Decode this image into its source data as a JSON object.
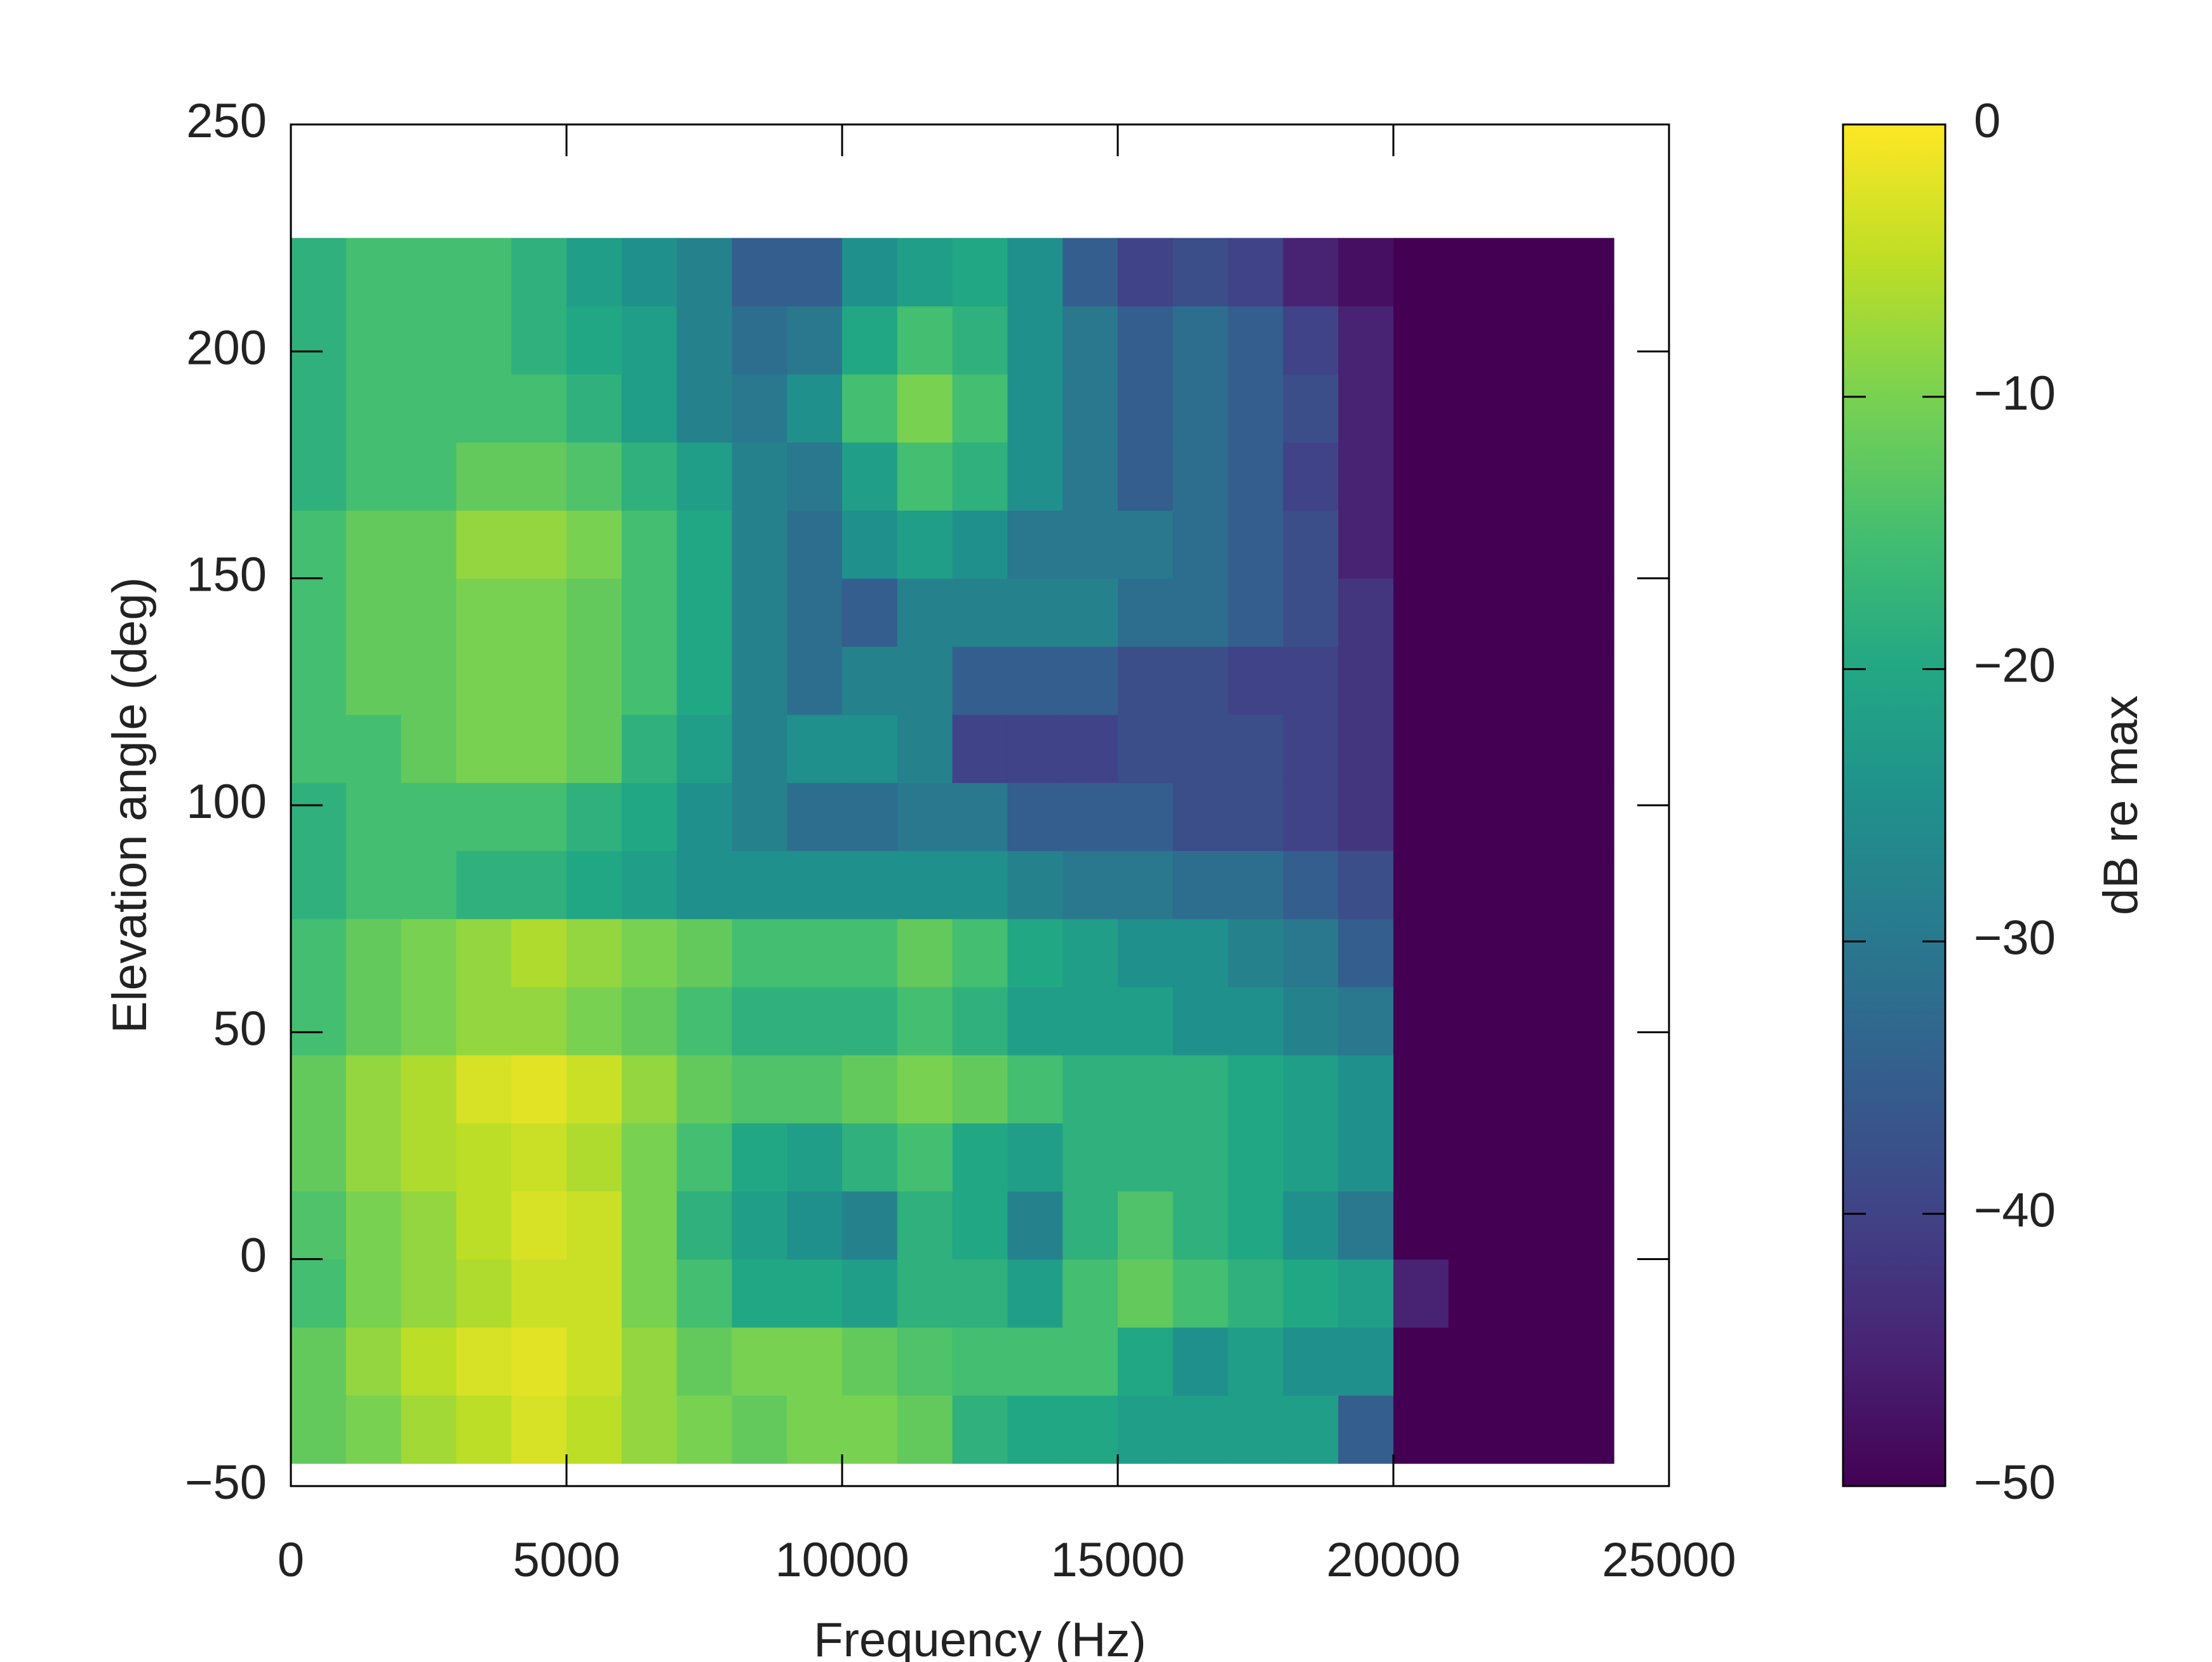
{
  "chart_data": {
    "type": "heatmap",
    "xlabel": "Frequency (Hz)",
    "ylabel": "Elevation angle (deg)",
    "colorbar_label": "dB re max",
    "colormap": "viridis",
    "xbins": [
      0,
      1000,
      2000,
      3000,
      4000,
      5000,
      6000,
      7000,
      8000,
      9000,
      10000,
      11000,
      12000,
      13000,
      14000,
      15000,
      16000,
      17000,
      18000,
      19000,
      20000,
      21000,
      22000,
      23000,
      24000
    ],
    "ybins": [
      -45,
      -30,
      -15,
      0,
      15,
      30,
      45,
      60,
      75,
      90,
      105,
      120,
      135,
      150,
      165,
      180,
      195,
      210,
      225
    ],
    "values": [
      [
        -12,
        -10,
        -7,
        -5,
        -3,
        -5,
        -8,
        -10,
        -12,
        -10,
        -10,
        -12,
        -18,
        -20,
        -20,
        -22,
        -22,
        -22,
        -22,
        -35,
        -50,
        -50,
        -50,
        -50
      ],
      [
        -12,
        -8,
        -5,
        -3,
        -2,
        -4,
        -8,
        -12,
        -10,
        -10,
        -12,
        -14,
        -15,
        -15,
        -15,
        -20,
        -25,
        -22,
        -25,
        -25,
        -50,
        -50,
        -50,
        -50
      ],
      [
        -15,
        -10,
        -8,
        -6,
        -4,
        -4,
        -10,
        -15,
        -20,
        -20,
        -22,
        -18,
        -18,
        -22,
        -15,
        -12,
        -15,
        -18,
        -20,
        -22,
        -45,
        -50,
        -50,
        -50
      ],
      [
        -14,
        -10,
        -8,
        -5,
        -3,
        -4,
        -10,
        -18,
        -22,
        -25,
        -28,
        -18,
        -20,
        -28,
        -18,
        -14,
        -18,
        -20,
        -25,
        -30,
        -50,
        -50,
        -50,
        -50
      ],
      [
        -12,
        -8,
        -6,
        -5,
        -4,
        -6,
        -10,
        -15,
        -20,
        -22,
        -18,
        -15,
        -20,
        -22,
        -18,
        -18,
        -18,
        -20,
        -22,
        -25,
        -50,
        -50,
        -50,
        -50
      ],
      [
        -12,
        -8,
        -6,
        -3,
        -2,
        -4,
        -8,
        -12,
        -14,
        -14,
        -12,
        -10,
        -12,
        -15,
        -18,
        -18,
        -18,
        -20,
        -22,
        -25,
        -50,
        -50,
        -50,
        -50
      ],
      [
        -15,
        -12,
        -10,
        -8,
        -8,
        -10,
        -12,
        -15,
        -18,
        -18,
        -18,
        -15,
        -18,
        -22,
        -22,
        -22,
        -25,
        -25,
        -28,
        -30,
        -50,
        -50,
        -50,
        -50
      ],
      [
        -15,
        -12,
        -10,
        -8,
        -6,
        -8,
        -10,
        -12,
        -15,
        -15,
        -15,
        -12,
        -15,
        -20,
        -22,
        -25,
        -25,
        -28,
        -30,
        -35,
        -50,
        -50,
        -50,
        -50
      ],
      [
        -18,
        -15,
        -15,
        -18,
        -18,
        -20,
        -22,
        -25,
        -25,
        -25,
        -25,
        -25,
        -25,
        -28,
        -30,
        -30,
        -32,
        -32,
        -35,
        -38,
        -50,
        -50,
        -50,
        -50
      ],
      [
        -18,
        -15,
        -15,
        -15,
        -15,
        -18,
        -20,
        -25,
        -28,
        -32,
        -32,
        -30,
        -30,
        -35,
        -35,
        -35,
        -38,
        -38,
        -40,
        -42,
        -50,
        -50,
        -50,
        -50
      ],
      [
        -15,
        -15,
        -12,
        -10,
        -10,
        -12,
        -18,
        -22,
        -28,
        -25,
        -25,
        -28,
        -40,
        -40,
        -40,
        -38,
        -38,
        -38,
        -40,
        -42,
        -50,
        -50,
        -50,
        -50
      ],
      [
        -15,
        -12,
        -12,
        -10,
        -10,
        -12,
        -15,
        -20,
        -28,
        -32,
        -28,
        -28,
        -35,
        -35,
        -35,
        -38,
        -38,
        -40,
        -40,
        -42,
        -50,
        -50,
        -50,
        -50
      ],
      [
        -15,
        -12,
        -12,
        -10,
        -10,
        -12,
        -15,
        -20,
        -28,
        -32,
        -35,
        -28,
        -28,
        -28,
        -28,
        -32,
        -32,
        -35,
        -38,
        -42,
        -50,
        -50,
        -50,
        -50
      ],
      [
        -15,
        -12,
        -12,
        -8,
        -8,
        -10,
        -15,
        -20,
        -28,
        -32,
        -25,
        -22,
        -25,
        -30,
        -30,
        -30,
        -32,
        -35,
        -38,
        -45,
        -50,
        -50,
        -50,
        -50
      ],
      [
        -18,
        -15,
        -15,
        -12,
        -12,
        -14,
        -18,
        -22,
        -28,
        -30,
        -22,
        -15,
        -18,
        -25,
        -30,
        -35,
        -32,
        -35,
        -40,
        -45,
        -50,
        -50,
        -50,
        -50
      ],
      [
        -18,
        -15,
        -15,
        -15,
        -15,
        -18,
        -22,
        -28,
        -30,
        -25,
        -15,
        -10,
        -15,
        -25,
        -30,
        -35,
        -32,
        -35,
        -38,
        -45,
        -50,
        -50,
        -50,
        -50
      ],
      [
        -18,
        -15,
        -15,
        -15,
        -18,
        -20,
        -22,
        -28,
        -32,
        -30,
        -20,
        -15,
        -18,
        -25,
        -30,
        -35,
        -32,
        -35,
        -40,
        -45,
        -50,
        -50,
        -50,
        -50
      ],
      [
        -18,
        -15,
        -15,
        -15,
        -18,
        -22,
        -25,
        -28,
        -35,
        -35,
        -25,
        -22,
        -20,
        -25,
        -35,
        -40,
        -38,
        -40,
        -45,
        -48,
        -50,
        -50,
        -50,
        -50
      ]
    ],
    "xlim": [
      0,
      25000
    ],
    "xticks": [
      0,
      5000,
      10000,
      15000,
      20000,
      25000
    ],
    "ylim": [
      -50,
      250
    ],
    "yticks": [
      {
        "value": -50,
        "label": "−50"
      },
      0,
      50,
      100,
      150,
      200,
      250
    ],
    "clim": [
      -50,
      0
    ],
    "cticks": [
      {
        "value": -50,
        "label": "−50"
      },
      {
        "value": -40,
        "label": "−40"
      },
      {
        "value": -30,
        "label": "−30"
      },
      {
        "value": -20,
        "label": "−20"
      },
      {
        "value": -10,
        "label": "−10"
      },
      0
    ]
  }
}
